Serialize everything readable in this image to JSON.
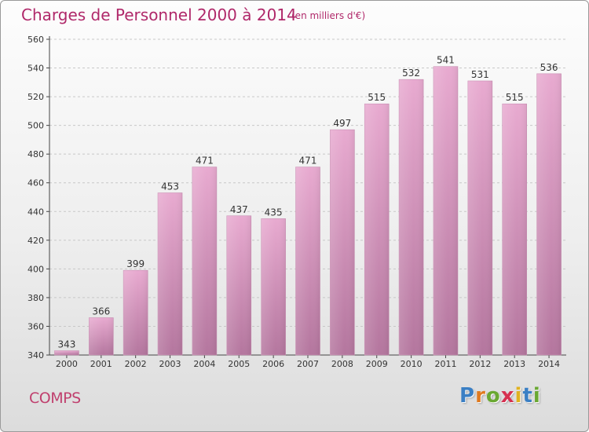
{
  "header": {
    "title": "Charges de Personnel 2000 à 2014",
    "unit_note": "(en milliers d'€)"
  },
  "footer": {
    "commune": "COMPS",
    "brand_letters": [
      "P",
      "r",
      "o",
      "x",
      "i",
      "t",
      "i"
    ],
    "brand_colors": [
      "#3a7fc4",
      "#e07a1f",
      "#6aa832",
      "#d6304f",
      "#e0b21f",
      "#3a7fc4",
      "#6aa832"
    ]
  },
  "colors": {
    "bar_top": "#e8aad0",
    "bar_bottom": "#b4769e",
    "title": "#b0286a"
  },
  "chart_data": {
    "type": "bar",
    "categories": [
      "2000",
      "2001",
      "2002",
      "2003",
      "2004",
      "2005",
      "2006",
      "2007",
      "2008",
      "2009",
      "2010",
      "2011",
      "2012",
      "2013",
      "2014"
    ],
    "values": [
      343,
      366,
      399,
      453,
      471,
      437,
      435,
      471,
      497,
      515,
      532,
      541,
      531,
      515,
      536
    ],
    "title": "Charges de Personnel 2000 à 2014",
    "subtitle": "(en milliers d'€)",
    "ylim": [
      340,
      560
    ],
    "yticks": [
      340,
      360,
      380,
      400,
      420,
      440,
      460,
      480,
      500,
      520,
      540,
      560
    ],
    "grid": true,
    "legend": "none"
  }
}
